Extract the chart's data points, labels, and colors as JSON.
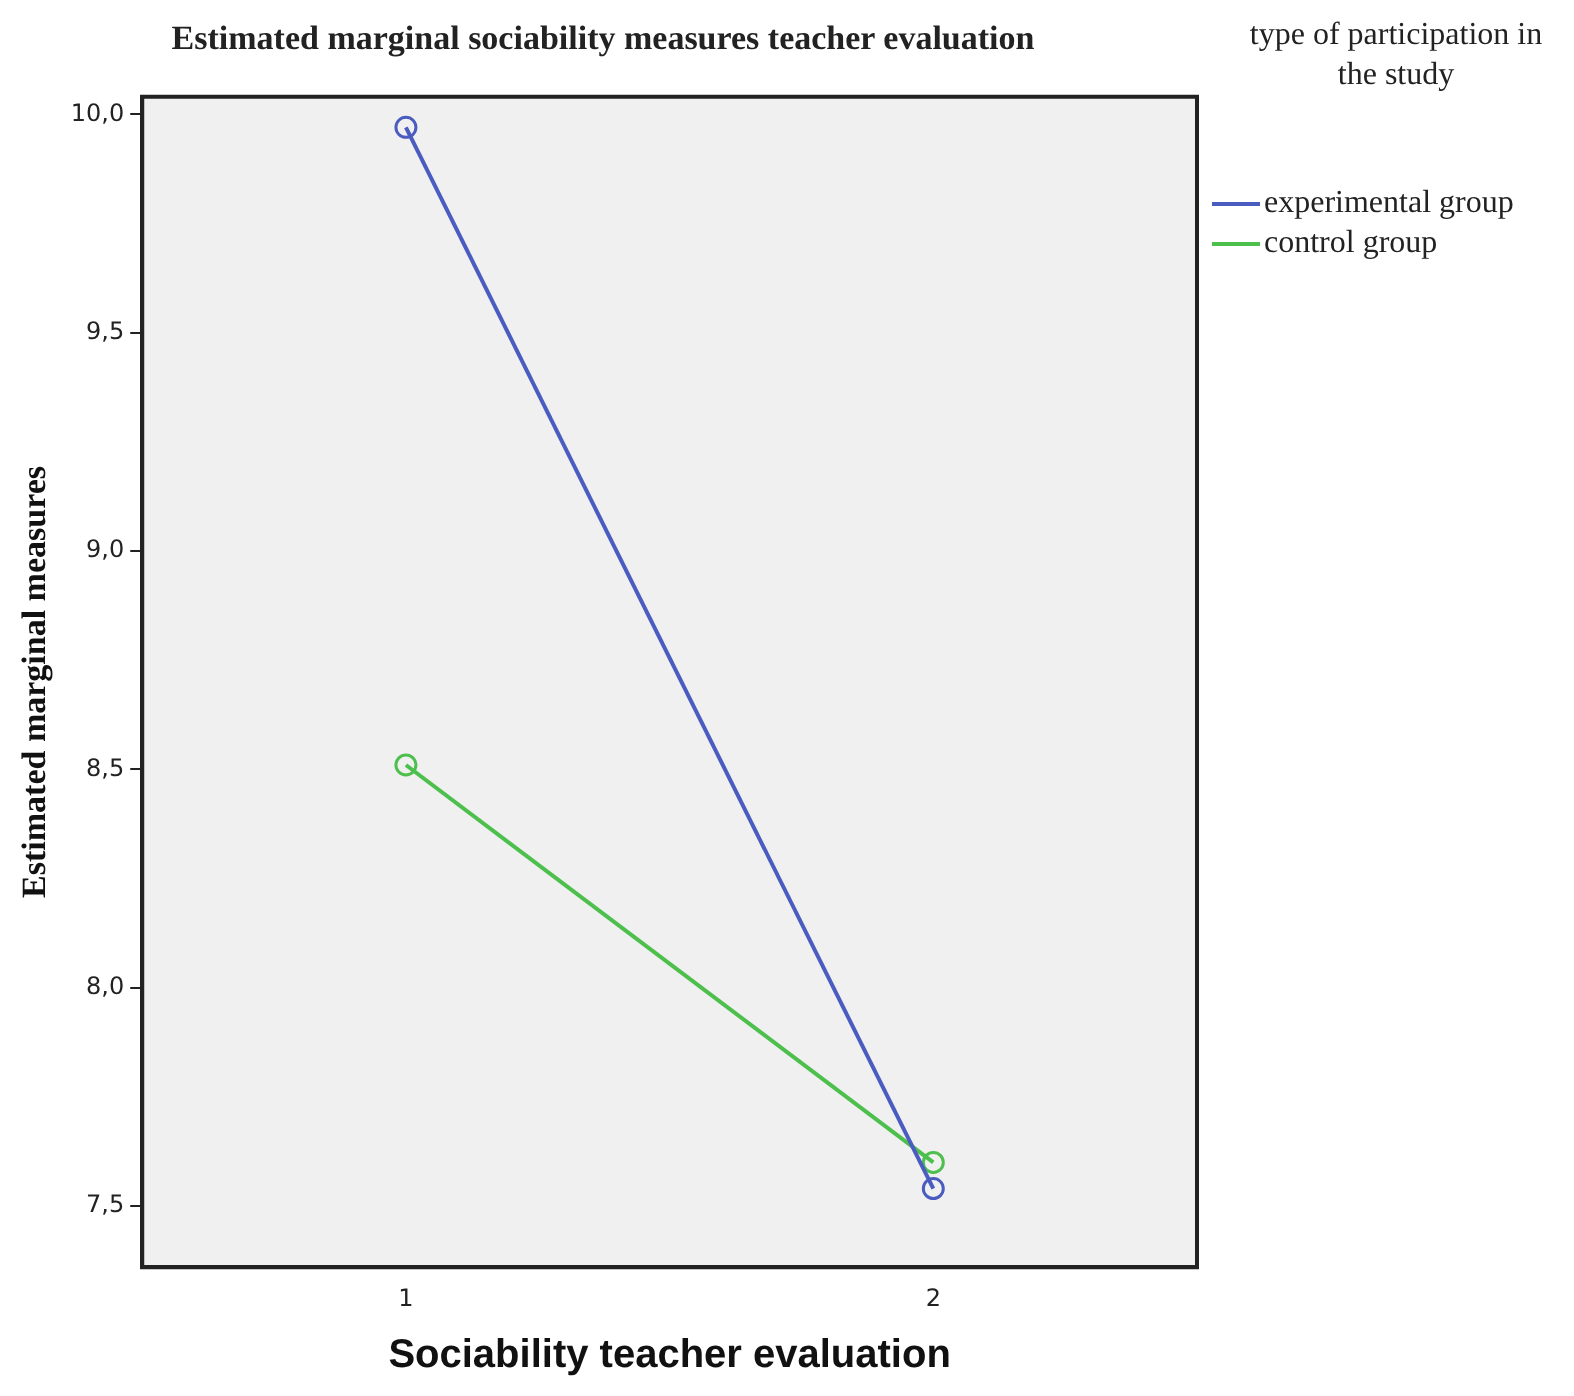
{
  "chart_data": {
    "type": "line",
    "title": "Estimated marginal sociability measures teacher evaluation",
    "xlabel": "Sociability teacher evaluation",
    "ylabel": "Estimated marginal measures",
    "legend_title": "type of participation in the study",
    "categories": [
      "1",
      "2"
    ],
    "series": [
      {
        "name": "experimental group",
        "color": "#4a5cc0",
        "values": [
          9.97,
          7.54
        ]
      },
      {
        "name": "control group",
        "color": "#4cbf4c",
        "values": [
          8.51,
          7.6
        ]
      }
    ],
    "ylim": [
      7.36,
      10.04
    ],
    "yticks": [
      {
        "value": 7.5,
        "label": "7,5"
      },
      {
        "value": 8,
        "label": "8,0"
      },
      {
        "value": 8.5,
        "label": "8,5"
      },
      {
        "value": 9,
        "label": "9,0"
      },
      {
        "value": 9.5,
        "label": "9,5"
      },
      {
        "value": 10,
        "label": "10,0"
      }
    ],
    "grid": false,
    "legend": "right",
    "marker": "circle",
    "line_style": "solid"
  }
}
